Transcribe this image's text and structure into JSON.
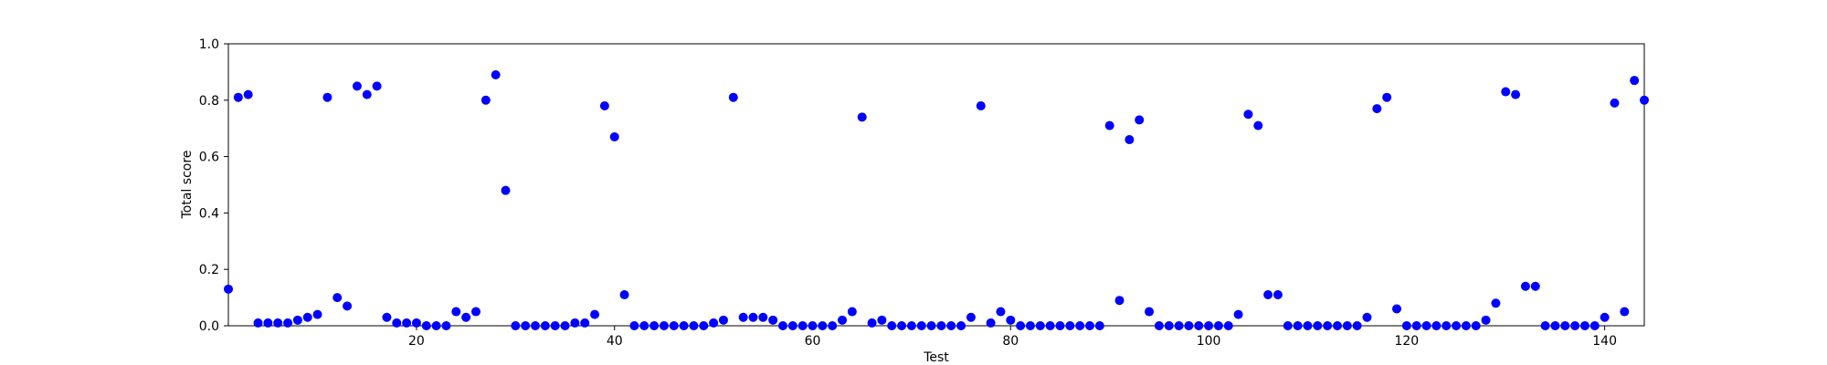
{
  "chart_data": {
    "type": "scatter",
    "title": "",
    "xlabel": "Test",
    "ylabel": "Total score",
    "xlim": [
      1,
      144
    ],
    "ylim": [
      0,
      1.0
    ],
    "x_ticks": [
      "20",
      "40",
      "60",
      "80",
      "100",
      "120",
      "140"
    ],
    "y_ticks": [
      "0.0",
      "0.2",
      "0.4",
      "0.6",
      "0.8",
      "1.0"
    ],
    "grid": false,
    "marker_color": "#0000ff",
    "series": [
      {
        "x": [
          1,
          2,
          3,
          4,
          5,
          6,
          7,
          8,
          9,
          10,
          11,
          12,
          13,
          14,
          15,
          16,
          17,
          18,
          19,
          20,
          21,
          22,
          23,
          24,
          25,
          26,
          27,
          28,
          29,
          30,
          31,
          32,
          33,
          34,
          35,
          36,
          37,
          38,
          39,
          40,
          41,
          42,
          43,
          44,
          45,
          46,
          47,
          48,
          49,
          50,
          51,
          52,
          53,
          54,
          55,
          56,
          57,
          58,
          59,
          60,
          61,
          62,
          63,
          64,
          65,
          66,
          67,
          68,
          69,
          70,
          71,
          72,
          73,
          74,
          75,
          76,
          77,
          78,
          79,
          80,
          81,
          82,
          83,
          84,
          85,
          86,
          87,
          88,
          89,
          90,
          91,
          92,
          93,
          94,
          95,
          96,
          97,
          98,
          99,
          100,
          101,
          102,
          103,
          104,
          105,
          106,
          107,
          108,
          109,
          110,
          111,
          112,
          113,
          114,
          115,
          116,
          117,
          118,
          119,
          120,
          121,
          122,
          123,
          124,
          125,
          126,
          127,
          128,
          129,
          130,
          131,
          132,
          133,
          134,
          135,
          136,
          137,
          138,
          139,
          140,
          141,
          142,
          143,
          144
        ],
        "y": [
          0.13,
          0.81,
          0.82,
          0.01,
          0.01,
          0.01,
          0.01,
          0.02,
          0.03,
          0.04,
          0.81,
          0.1,
          0.07,
          0.85,
          0.82,
          0.85,
          0.03,
          0.01,
          0.01,
          0.01,
          0.0,
          0.0,
          0.0,
          0.05,
          0.03,
          0.05,
          0.8,
          0.89,
          0.48,
          0.0,
          0.0,
          0.0,
          0.0,
          0.0,
          0.0,
          0.01,
          0.01,
          0.04,
          0.78,
          0.67,
          0.11,
          0.0,
          0.0,
          0.0,
          0.0,
          0.0,
          0.0,
          0.0,
          0.0,
          0.01,
          0.02,
          0.81,
          0.03,
          0.03,
          0.03,
          0.02,
          0.0,
          0.0,
          0.0,
          0.0,
          0.0,
          0.0,
          0.02,
          0.05,
          0.74,
          0.01,
          0.02,
          0.0,
          0.0,
          0.0,
          0.0,
          0.0,
          0.0,
          0.0,
          0.0,
          0.03,
          0.78,
          0.01,
          0.05,
          0.02,
          0.0,
          0.0,
          0.0,
          0.0,
          0.0,
          0.0,
          0.0,
          0.0,
          0.0,
          0.71,
          0.09,
          0.66,
          0.73,
          0.05,
          0.0,
          0.0,
          0.0,
          0.0,
          0.0,
          0.0,
          0.0,
          0.0,
          0.04,
          0.75,
          0.71,
          0.11,
          0.11,
          0.0,
          0.0,
          0.0,
          0.0,
          0.0,
          0.0,
          0.0,
          0.0,
          0.03,
          0.77,
          0.81,
          0.06,
          0.0,
          0.0,
          0.0,
          0.0,
          0.0,
          0.0,
          0.0,
          0.0,
          0.02,
          0.08,
          0.83,
          0.82,
          0.14,
          0.14,
          0.0,
          0.0,
          0.0,
          0.0,
          0.0,
          0.0,
          0.03,
          0.79,
          0.05,
          0.87,
          0.8
        ]
      }
    ]
  }
}
